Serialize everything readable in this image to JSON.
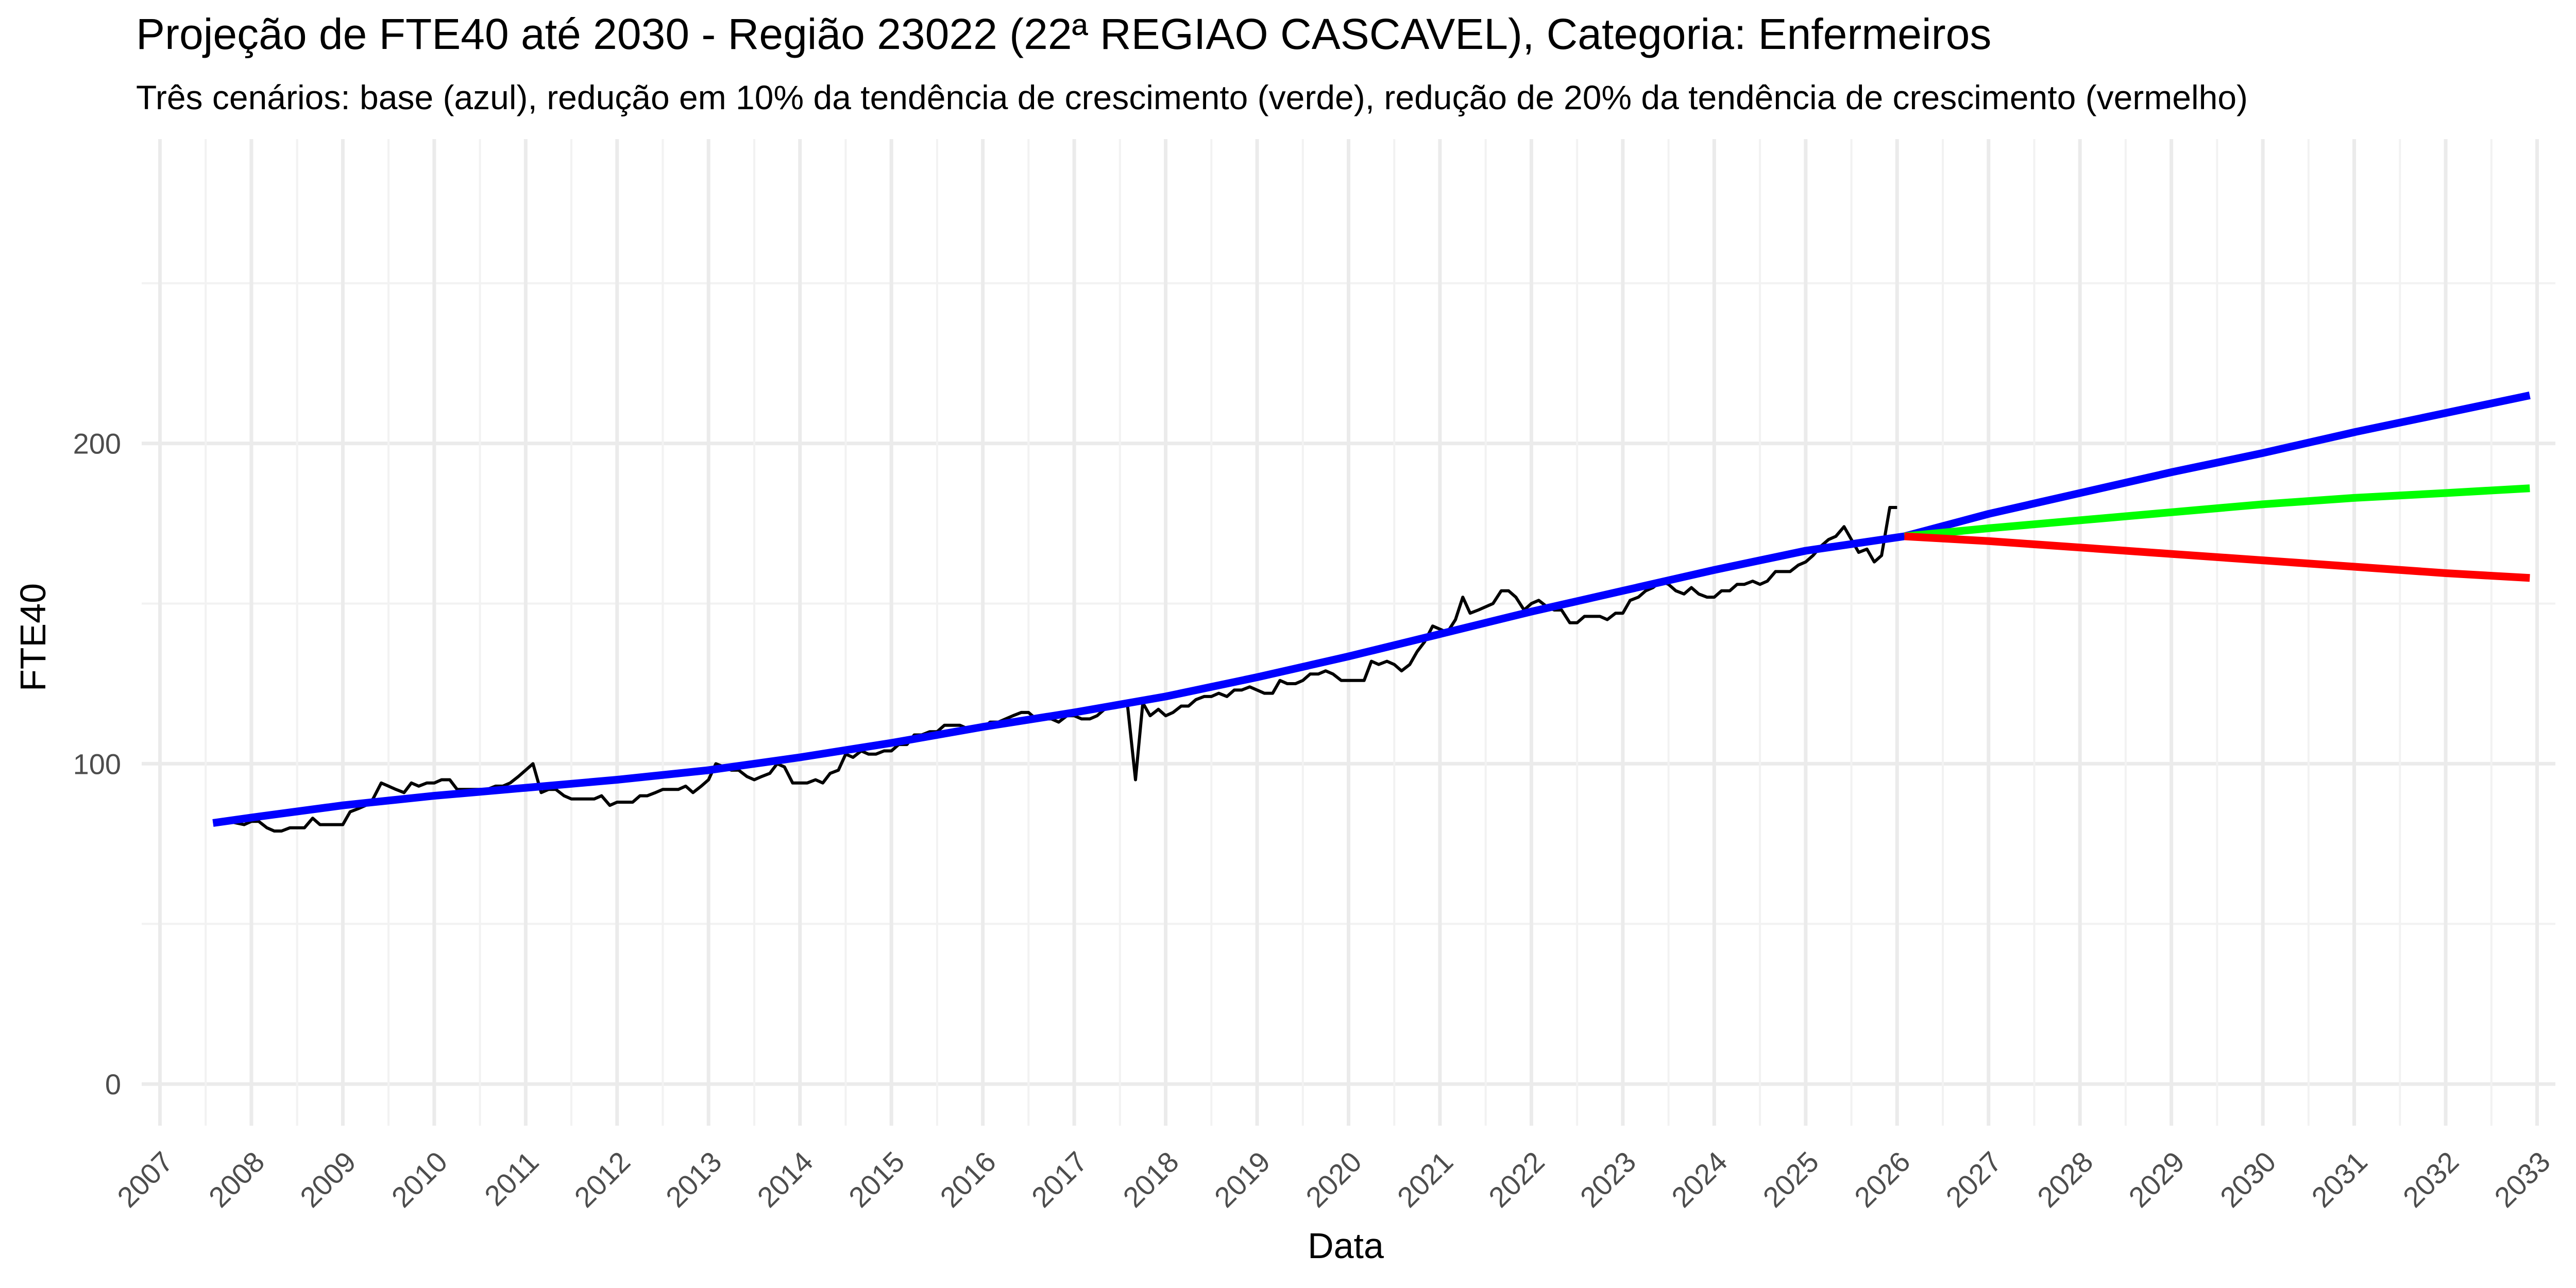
{
  "chart_data": {
    "type": "line",
    "title": "Projeção de FTE40 até 2030 - Região 23022 (22ª REGIAO CASCAVEL), Categoria: Enfermeiros",
    "subtitle": "Três cenários: base (azul), redução em 10% da tendência de crescimento (verde), redução de 20% da tendência de crescimento (vermelho)",
    "xlabel": "Data",
    "ylabel": "FTE40",
    "xlim": [
      2006.8,
      2033.2
    ],
    "ylim": [
      -13,
      295
    ],
    "x_ticks": [
      "2007",
      "2008",
      "2009",
      "2010",
      "2011",
      "2012",
      "2013",
      "2014",
      "2015",
      "2016",
      "2017",
      "2018",
      "2019",
      "2020",
      "2021",
      "2022",
      "2023",
      "2024",
      "2025",
      "2026",
      "2027",
      "2028",
      "2029",
      "2030",
      "2031",
      "2032",
      "2033"
    ],
    "y_ticks": [
      0,
      100,
      200
    ],
    "grid": true,
    "legend": "none",
    "series": [
      {
        "color": "#000000",
        "points": [
          [
            2007.58,
            82
          ],
          [
            2007.75,
            82
          ],
          [
            2007.92,
            81
          ],
          [
            2008.0,
            82
          ],
          [
            2008.08,
            82
          ],
          [
            2008.17,
            80
          ],
          [
            2008.25,
            79
          ],
          [
            2008.33,
            79
          ],
          [
            2008.42,
            80
          ],
          [
            2008.5,
            80
          ],
          [
            2008.58,
            80
          ],
          [
            2008.67,
            83
          ],
          [
            2008.75,
            81
          ],
          [
            2008.83,
            81
          ],
          [
            2008.92,
            81
          ],
          [
            2009.0,
            81
          ],
          [
            2009.08,
            85
          ],
          [
            2009.17,
            86
          ],
          [
            2009.25,
            87
          ],
          [
            2009.33,
            89
          ],
          [
            2009.42,
            94
          ],
          [
            2009.5,
            93
          ],
          [
            2009.58,
            92
          ],
          [
            2009.67,
            91
          ],
          [
            2009.75,
            94
          ],
          [
            2009.83,
            93
          ],
          [
            2009.92,
            94
          ],
          [
            2010.0,
            94
          ],
          [
            2010.08,
            95
          ],
          [
            2010.17,
            95
          ],
          [
            2010.25,
            92
          ],
          [
            2010.33,
            92
          ],
          [
            2010.42,
            92
          ],
          [
            2010.5,
            92
          ],
          [
            2010.58,
            92
          ],
          [
            2010.67,
            93
          ],
          [
            2010.75,
            93
          ],
          [
            2010.83,
            94
          ],
          [
            2010.92,
            96
          ],
          [
            2011.0,
            98
          ],
          [
            2011.08,
            100
          ],
          [
            2011.17,
            91
          ],
          [
            2011.25,
            92
          ],
          [
            2011.33,
            92
          ],
          [
            2011.42,
            90
          ],
          [
            2011.5,
            89
          ],
          [
            2011.58,
            89
          ],
          [
            2011.67,
            89
          ],
          [
            2011.75,
            89
          ],
          [
            2011.83,
            90
          ],
          [
            2011.92,
            87
          ],
          [
            2012.0,
            88
          ],
          [
            2012.08,
            88
          ],
          [
            2012.17,
            88
          ],
          [
            2012.25,
            90
          ],
          [
            2012.33,
            90
          ],
          [
            2012.42,
            91
          ],
          [
            2012.5,
            92
          ],
          [
            2012.58,
            92
          ],
          [
            2012.67,
            92
          ],
          [
            2012.75,
            93
          ],
          [
            2012.83,
            91
          ],
          [
            2012.92,
            93
          ],
          [
            2013.0,
            95
          ],
          [
            2013.08,
            100
          ],
          [
            2013.17,
            99
          ],
          [
            2013.25,
            98
          ],
          [
            2013.33,
            98
          ],
          [
            2013.42,
            96
          ],
          [
            2013.5,
            95
          ],
          [
            2013.58,
            96
          ],
          [
            2013.67,
            97
          ],
          [
            2013.75,
            100
          ],
          [
            2013.83,
            99
          ],
          [
            2013.92,
            94
          ],
          [
            2014.0,
            94
          ],
          [
            2014.08,
            94
          ],
          [
            2014.17,
            95
          ],
          [
            2014.25,
            94
          ],
          [
            2014.33,
            97
          ],
          [
            2014.42,
            98
          ],
          [
            2014.5,
            103
          ],
          [
            2014.58,
            102
          ],
          [
            2014.67,
            104
          ],
          [
            2014.75,
            103
          ],
          [
            2014.83,
            103
          ],
          [
            2014.92,
            104
          ],
          [
            2015.0,
            104
          ],
          [
            2015.08,
            106
          ],
          [
            2015.17,
            106
          ],
          [
            2015.25,
            109
          ],
          [
            2015.33,
            109
          ],
          [
            2015.42,
            110
          ],
          [
            2015.5,
            110
          ],
          [
            2015.58,
            112
          ],
          [
            2015.67,
            112
          ],
          [
            2015.75,
            112
          ],
          [
            2015.83,
            111
          ],
          [
            2015.92,
            111
          ],
          [
            2016.0,
            111
          ],
          [
            2016.08,
            113
          ],
          [
            2016.17,
            113
          ],
          [
            2016.25,
            114
          ],
          [
            2016.33,
            115
          ],
          [
            2016.42,
            116
          ],
          [
            2016.5,
            116
          ],
          [
            2016.58,
            114
          ],
          [
            2016.67,
            114
          ],
          [
            2016.75,
            114
          ],
          [
            2016.83,
            113
          ],
          [
            2016.92,
            115
          ],
          [
            2017.0,
            115
          ],
          [
            2017.08,
            114
          ],
          [
            2017.17,
            114
          ],
          [
            2017.25,
            115
          ],
          [
            2017.33,
            117
          ],
          [
            2017.42,
            118
          ],
          [
            2017.5,
            119
          ],
          [
            2017.58,
            119
          ],
          [
            2017.67,
            95
          ],
          [
            2017.75,
            119
          ],
          [
            2017.83,
            115
          ],
          [
            2017.92,
            117
          ],
          [
            2018.0,
            115
          ],
          [
            2018.08,
            116
          ],
          [
            2018.17,
            118
          ],
          [
            2018.25,
            118
          ],
          [
            2018.33,
            120
          ],
          [
            2018.42,
            121
          ],
          [
            2018.5,
            121
          ],
          [
            2018.58,
            122
          ],
          [
            2018.67,
            121
          ],
          [
            2018.75,
            123
          ],
          [
            2018.83,
            123
          ],
          [
            2018.92,
            124
          ],
          [
            2019.0,
            123
          ],
          [
            2019.08,
            122
          ],
          [
            2019.17,
            122
          ],
          [
            2019.25,
            126
          ],
          [
            2019.33,
            125
          ],
          [
            2019.42,
            125
          ],
          [
            2019.5,
            126
          ],
          [
            2019.58,
            128
          ],
          [
            2019.67,
            128
          ],
          [
            2019.75,
            129
          ],
          [
            2019.83,
            128
          ],
          [
            2019.92,
            126
          ],
          [
            2020.0,
            126
          ],
          [
            2020.08,
            126
          ],
          [
            2020.17,
            126
          ],
          [
            2020.25,
            132
          ],
          [
            2020.33,
            131
          ],
          [
            2020.42,
            132
          ],
          [
            2020.5,
            131
          ],
          [
            2020.58,
            129
          ],
          [
            2020.67,
            131
          ],
          [
            2020.75,
            135
          ],
          [
            2020.83,
            138
          ],
          [
            2020.92,
            143
          ],
          [
            2021.0,
            142
          ],
          [
            2021.08,
            141
          ],
          [
            2021.17,
            145
          ],
          [
            2021.25,
            152
          ],
          [
            2021.33,
            147
          ],
          [
            2021.42,
            148
          ],
          [
            2021.5,
            149
          ],
          [
            2021.58,
            150
          ],
          [
            2021.67,
            154
          ],
          [
            2021.75,
            154
          ],
          [
            2021.83,
            152
          ],
          [
            2021.92,
            148
          ],
          [
            2022.0,
            150
          ],
          [
            2022.08,
            151
          ],
          [
            2022.17,
            149
          ],
          [
            2022.25,
            148
          ],
          [
            2022.33,
            148
          ],
          [
            2022.42,
            144
          ],
          [
            2022.5,
            144
          ],
          [
            2022.58,
            146
          ],
          [
            2022.67,
            146
          ],
          [
            2022.75,
            146
          ],
          [
            2022.83,
            145
          ],
          [
            2022.92,
            147
          ],
          [
            2023.0,
            147
          ],
          [
            2023.08,
            151
          ],
          [
            2023.17,
            152
          ],
          [
            2023.25,
            154
          ],
          [
            2023.33,
            155
          ],
          [
            2023.42,
            157
          ],
          [
            2023.5,
            156
          ],
          [
            2023.58,
            154
          ],
          [
            2023.67,
            153
          ],
          [
            2023.75,
            155
          ],
          [
            2023.83,
            153
          ],
          [
            2023.92,
            152
          ],
          [
            2024.0,
            152
          ],
          [
            2024.08,
            154
          ],
          [
            2024.17,
            154
          ],
          [
            2024.25,
            156
          ],
          [
            2024.33,
            156
          ],
          [
            2024.42,
            157
          ],
          [
            2024.5,
            156
          ],
          [
            2024.58,
            157
          ],
          [
            2024.67,
            160
          ],
          [
            2024.75,
            160
          ],
          [
            2024.83,
            160
          ],
          [
            2024.92,
            162
          ],
          [
            2025.0,
            163
          ],
          [
            2025.08,
            165
          ],
          [
            2025.17,
            168
          ],
          [
            2025.25,
            170
          ],
          [
            2025.33,
            171
          ],
          [
            2025.42,
            174
          ],
          [
            2025.5,
            170
          ],
          [
            2025.58,
            166
          ],
          [
            2025.67,
            167
          ],
          [
            2025.75,
            163
          ],
          [
            2025.83,
            165
          ],
          [
            2025.92,
            180
          ],
          [
            2026.0,
            180
          ]
        ]
      },
      {
        "color": "#0000ff",
        "points": [
          [
            2007.58,
            81.5
          ],
          [
            2008.0,
            83.2
          ],
          [
            2009.0,
            87.0
          ],
          [
            2010.0,
            90.0
          ],
          [
            2011.0,
            92.5
          ],
          [
            2012.0,
            95.0
          ],
          [
            2013.0,
            98.0
          ],
          [
            2014.0,
            102.0
          ],
          [
            2015.0,
            106.5
          ],
          [
            2016.0,
            111.5
          ],
          [
            2017.0,
            116.0
          ],
          [
            2018.0,
            121.0
          ],
          [
            2019.0,
            127.0
          ],
          [
            2020.0,
            133.5
          ],
          [
            2021.0,
            140.5
          ],
          [
            2022.0,
            147.5
          ],
          [
            2023.0,
            154.0
          ],
          [
            2024.0,
            160.5
          ],
          [
            2025.0,
            166.5
          ],
          [
            2026.08,
            171.0
          ],
          [
            2027.0,
            178.0
          ],
          [
            2028.0,
            184.5
          ],
          [
            2029.0,
            191.0
          ],
          [
            2030.0,
            197.0
          ],
          [
            2031.0,
            203.5
          ],
          [
            2032.0,
            209.5
          ],
          [
            2032.92,
            215.0
          ]
        ]
      },
      {
        "color": "#00ff00",
        "points": [
          [
            2026.08,
            171.0
          ],
          [
            2027.0,
            173.5
          ],
          [
            2028.0,
            176.0
          ],
          [
            2029.0,
            178.5
          ],
          [
            2030.0,
            181.0
          ],
          [
            2031.0,
            183.0
          ],
          [
            2032.0,
            184.5
          ],
          [
            2032.92,
            186.0
          ]
        ]
      },
      {
        "color": "#ff0000",
        "points": [
          [
            2026.08,
            171.0
          ],
          [
            2027.0,
            169.5
          ],
          [
            2028.0,
            167.5
          ],
          [
            2029.0,
            165.5
          ],
          [
            2030.0,
            163.5
          ],
          [
            2031.0,
            161.5
          ],
          [
            2032.0,
            159.5
          ],
          [
            2032.92,
            158.0
          ]
        ]
      }
    ]
  }
}
